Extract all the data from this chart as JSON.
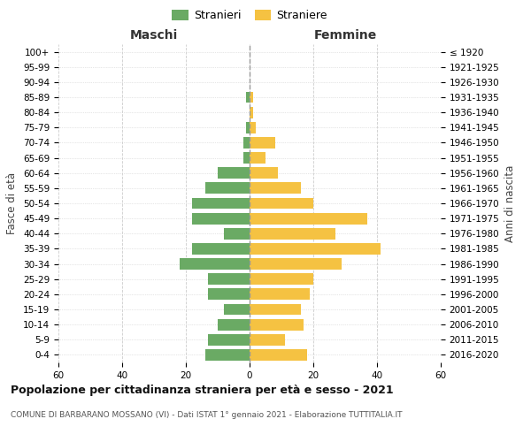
{
  "age_groups": [
    "0-4",
    "5-9",
    "10-14",
    "15-19",
    "20-24",
    "25-29",
    "30-34",
    "35-39",
    "40-44",
    "45-49",
    "50-54",
    "55-59",
    "60-64",
    "65-69",
    "70-74",
    "75-79",
    "80-84",
    "85-89",
    "90-94",
    "95-99",
    "100+"
  ],
  "birth_years": [
    "2016-2020",
    "2011-2015",
    "2006-2010",
    "2001-2005",
    "1996-2000",
    "1991-1995",
    "1986-1990",
    "1981-1985",
    "1976-1980",
    "1971-1975",
    "1966-1970",
    "1961-1965",
    "1956-1960",
    "1951-1955",
    "1946-1950",
    "1941-1945",
    "1936-1940",
    "1931-1935",
    "1926-1930",
    "1921-1925",
    "≤ 1920"
  ],
  "maschi": [
    14,
    13,
    10,
    8,
    13,
    13,
    22,
    18,
    8,
    18,
    18,
    14,
    10,
    2,
    2,
    1,
    0,
    1,
    0,
    0,
    0
  ],
  "femmine": [
    18,
    11,
    17,
    16,
    19,
    20,
    29,
    41,
    27,
    37,
    20,
    16,
    9,
    5,
    8,
    2,
    1,
    1,
    0,
    0,
    0
  ],
  "color_maschi": "#6aaa64",
  "color_femmine": "#f5c242",
  "background_color": "#ffffff",
  "grid_color": "#cccccc",
  "title": "Popolazione per cittadinanza straniera per età e sesso - 2021",
  "subtitle": "COMUNE DI BARBARANO MOSSANO (VI) - Dati ISTAT 1° gennaio 2021 - Elaborazione TUTTITALIA.IT",
  "xlabel_left": "Maschi",
  "xlabel_right": "Femmine",
  "ylabel_left": "Fasce di età",
  "ylabel_right": "Anni di nascita",
  "legend_maschi": "Stranieri",
  "legend_femmine": "Straniere",
  "xlim": 60,
  "bar_height": 0.75
}
